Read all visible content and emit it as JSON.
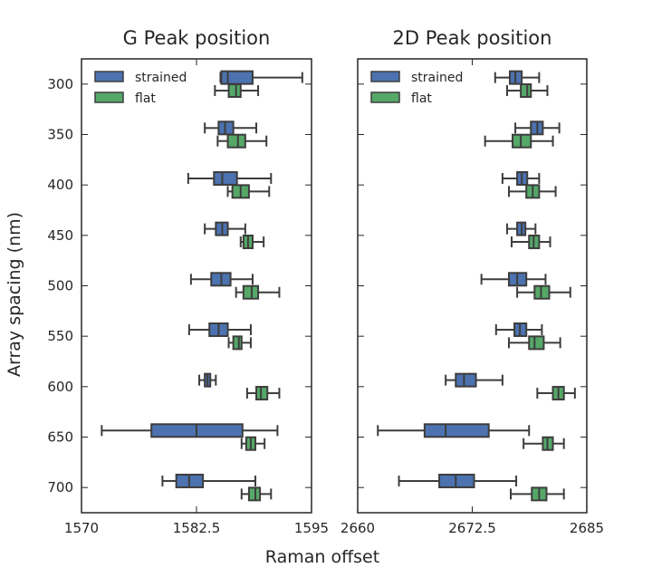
{
  "figure": {
    "xlabel": "Raman offset",
    "ylabel": "Array spacing (nm)"
  },
  "legend": {
    "entries": [
      {
        "label": "strained",
        "color": "#4c72b0"
      },
      {
        "label": "flat",
        "color": "#55a868"
      }
    ],
    "placement": "top-left"
  },
  "chart_data": [
    {
      "type": "boxplot",
      "orientation": "horizontal",
      "title": "G Peak position",
      "xlabel": "Raman offset",
      "ylabel": "Array spacing (nm)",
      "xlim": [
        1570,
        1595
      ],
      "xticks": [
        1570,
        1582.5,
        1595
      ],
      "xtick_labels": [
        "1570",
        "1582.5",
        "1595"
      ],
      "ylim": [
        725,
        275
      ],
      "categories": [
        300,
        350,
        400,
        450,
        500,
        550,
        600,
        650,
        700
      ],
      "series": [
        {
          "name": "strained",
          "color": "#4c72b0",
          "boxes": [
            {
              "whislo": 1585.1,
              "q1": 1585.2,
              "med": 1585.9,
              "q3": 1588.6,
              "whishi": 1594.0
            },
            {
              "whislo": 1583.4,
              "q1": 1584.9,
              "med": 1585.6,
              "q3": 1586.5,
              "whishi": 1589.0
            },
            {
              "whislo": 1581.6,
              "q1": 1584.4,
              "med": 1585.3,
              "q3": 1586.9,
              "whishi": 1590.6
            },
            {
              "whislo": 1583.4,
              "q1": 1584.6,
              "med": 1585.3,
              "q3": 1585.9,
              "whishi": 1587.8
            },
            {
              "whislo": 1581.9,
              "q1": 1584.1,
              "med": 1585.2,
              "q3": 1586.2,
              "whishi": 1588.6
            },
            {
              "whislo": 1581.7,
              "q1": 1583.9,
              "med": 1584.9,
              "q3": 1585.9,
              "whishi": 1588.4
            },
            {
              "whislo": 1582.8,
              "q1": 1583.4,
              "med": 1583.7,
              "q3": 1584.0,
              "whishi": 1584.6
            },
            {
              "whislo": 1572.2,
              "q1": 1577.6,
              "med": 1582.5,
              "q3": 1587.5,
              "whishi": 1591.3
            },
            {
              "whislo": 1578.8,
              "q1": 1580.3,
              "med": 1581.7,
              "q3": 1583.2,
              "whishi": 1588.9
            }
          ]
        },
        {
          "name": "flat",
          "color": "#55a868",
          "boxes": [
            {
              "whislo": 1584.5,
              "q1": 1586.0,
              "med": 1586.8,
              "q3": 1587.3,
              "whishi": 1589.2
            },
            {
              "whislo": 1584.8,
              "q1": 1585.9,
              "med": 1587.0,
              "q3": 1587.8,
              "whishi": 1590.1
            },
            {
              "whislo": 1585.9,
              "q1": 1586.4,
              "med": 1587.3,
              "q3": 1588.2,
              "whishi": 1590.4
            },
            {
              "whislo": 1587.3,
              "q1": 1587.6,
              "med": 1588.1,
              "q3": 1588.6,
              "whishi": 1589.8
            },
            {
              "whislo": 1586.8,
              "q1": 1587.6,
              "med": 1588.5,
              "q3": 1589.2,
              "whishi": 1591.5
            },
            {
              "whislo": 1586.0,
              "q1": 1586.5,
              "med": 1587.1,
              "q3": 1587.4,
              "whishi": 1588.4
            },
            {
              "whislo": 1588.0,
              "q1": 1589.0,
              "med": 1589.5,
              "q3": 1590.2,
              "whishi": 1591.5
            },
            {
              "whislo": 1587.4,
              "q1": 1587.9,
              "med": 1588.4,
              "q3": 1588.9,
              "whishi": 1589.9
            },
            {
              "whislo": 1587.4,
              "q1": 1588.2,
              "med": 1588.9,
              "q3": 1589.4,
              "whishi": 1590.6
            }
          ]
        }
      ]
    },
    {
      "type": "boxplot",
      "orientation": "horizontal",
      "title": "2D Peak position",
      "xlabel": "Raman offset",
      "ylabel": "Array spacing (nm)",
      "xlim": [
        2660,
        2685
      ],
      "xticks": [
        2660,
        2672.5,
        2685
      ],
      "xtick_labels": [
        "2660",
        "2672.5",
        "2685"
      ],
      "ylim": [
        725,
        275
      ],
      "categories": [
        300,
        350,
        400,
        450,
        500,
        550,
        600,
        650,
        700
      ],
      "series": [
        {
          "name": "strained",
          "color": "#4c72b0",
          "boxes": [
            {
              "whislo": 2675.0,
              "q1": 2676.6,
              "med": 2677.2,
              "q3": 2677.9,
              "whishi": 2679.8
            },
            {
              "whislo": 2677.2,
              "q1": 2678.9,
              "med": 2679.6,
              "q3": 2680.2,
              "whishi": 2682.0
            },
            {
              "whislo": 2675.8,
              "q1": 2677.4,
              "med": 2677.9,
              "q3": 2678.5,
              "whishi": 2679.8
            },
            {
              "whislo": 2676.3,
              "q1": 2677.4,
              "med": 2677.9,
              "q3": 2678.3,
              "whishi": 2679.4
            },
            {
              "whislo": 2673.5,
              "q1": 2676.5,
              "med": 2677.4,
              "q3": 2678.4,
              "whishi": 2680.5
            },
            {
              "whislo": 2675.1,
              "q1": 2677.1,
              "med": 2677.7,
              "q3": 2678.4,
              "whishi": 2680.1
            },
            {
              "whislo": 2669.6,
              "q1": 2670.7,
              "med": 2671.6,
              "q3": 2672.9,
              "whishi": 2675.8
            },
            {
              "whislo": 2662.2,
              "q1": 2667.3,
              "med": 2669.6,
              "q3": 2674.3,
              "whishi": 2678.7
            },
            {
              "whislo": 2664.5,
              "q1": 2668.9,
              "med": 2670.7,
              "q3": 2672.7,
              "whishi": 2677.3
            }
          ]
        },
        {
          "name": "flat",
          "color": "#55a868",
          "boxes": [
            {
              "whislo": 2676.3,
              "q1": 2677.8,
              "med": 2678.5,
              "q3": 2678.9,
              "whishi": 2680.7
            },
            {
              "whislo": 2673.9,
              "q1": 2676.9,
              "med": 2677.8,
              "q3": 2678.9,
              "whishi": 2681.3
            },
            {
              "whislo": 2676.5,
              "q1": 2678.4,
              "med": 2679.1,
              "q3": 2679.8,
              "whishi": 2681.6
            },
            {
              "whislo": 2676.8,
              "q1": 2678.7,
              "med": 2679.2,
              "q3": 2679.8,
              "whishi": 2681.0
            },
            {
              "whislo": 2677.4,
              "q1": 2679.3,
              "med": 2680.0,
              "q3": 2680.9,
              "whishi": 2683.2
            },
            {
              "whislo": 2676.5,
              "q1": 2678.7,
              "med": 2679.3,
              "q3": 2680.3,
              "whishi": 2682.1
            },
            {
              "whislo": 2679.6,
              "q1": 2681.3,
              "med": 2681.9,
              "q3": 2682.5,
              "whishi": 2683.7
            },
            {
              "whislo": 2678.1,
              "q1": 2680.2,
              "med": 2680.7,
              "q3": 2681.3,
              "whishi": 2682.5
            },
            {
              "whislo": 2676.7,
              "q1": 2679.0,
              "med": 2679.8,
              "q3": 2680.6,
              "whishi": 2682.5
            }
          ]
        }
      ]
    }
  ]
}
